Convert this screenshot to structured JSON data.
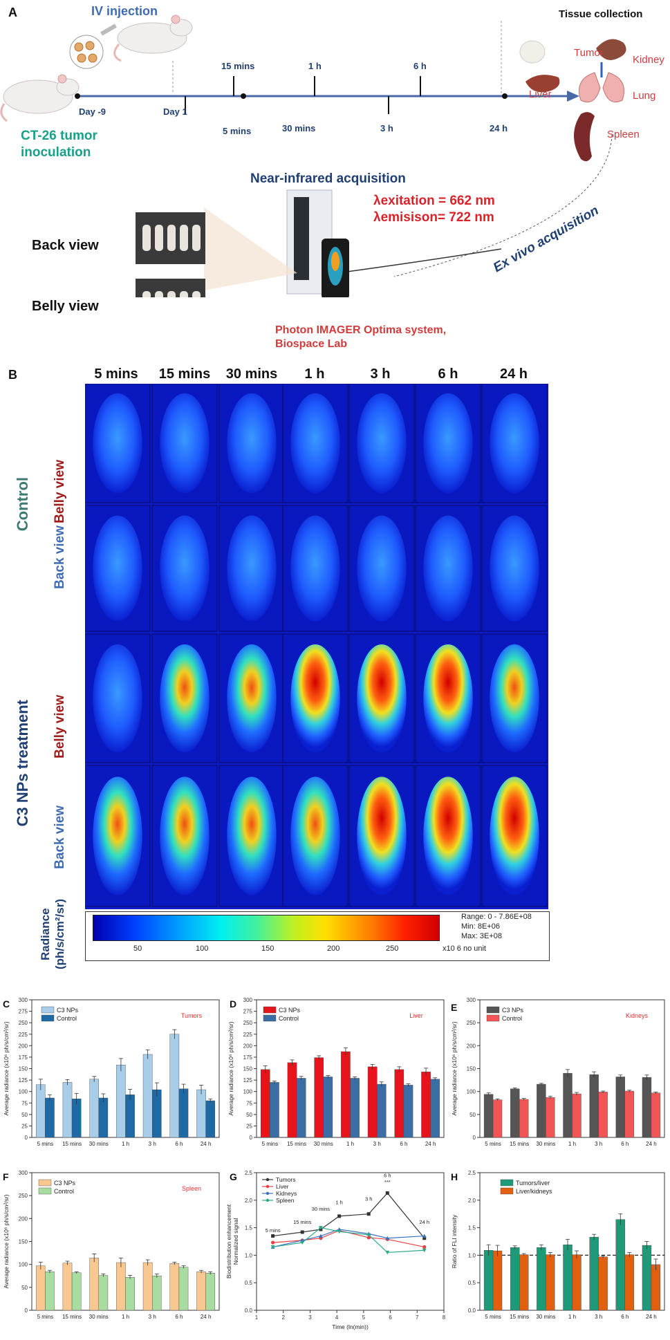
{
  "panel_a": {
    "letter": "A",
    "iv_injection": "IV injection",
    "tissue_collection": "Tissue collection",
    "tumor_inoculation": "CT-26 tumor\ninoculation",
    "timeline_top": [
      "15 mins",
      "1 h",
      "6 h"
    ],
    "timeline_bottom": [
      "Day -9",
      "Day 1",
      "5 mins",
      "30 mins",
      "3 h",
      "24 h"
    ],
    "organs": [
      "Tumor",
      "Kidney",
      "Liver",
      "Lung",
      "Spleen"
    ],
    "near_infrared": "Near-infrared acquisition",
    "lambda_excitation": "λexitation = 662 nm",
    "lambda_emission": "λemisison= 722 nm",
    "back_view": "Back view",
    "belly_view": "Belly view",
    "system_name": "Photon IMAGER Optima system,\nBiospace Lab",
    "ex_vivo": "Ex vivo acquisition"
  },
  "panel_b": {
    "letter": "B",
    "columns": [
      "5 mins",
      "15 mins",
      "30 mins",
      "1 h",
      "3 h",
      "6 h",
      "24 h"
    ],
    "groups": [
      "Control",
      "C3 NPs treatment"
    ],
    "row_labels": [
      "Belly view",
      "Back view",
      "Belly view",
      "Back view"
    ],
    "radiance_label": "Radiance\n(ph/s/cm²/sr)",
    "scale_ticks": [
      "50",
      "100",
      "150",
      "200",
      "250"
    ],
    "range_text": "Range: 0  -  7.86E+08",
    "min_text": "Min:       8E+06",
    "max_text": "Max:       3E+08",
    "unit_text": "x10 6  no unit"
  },
  "chart_data": [
    {
      "id": "C",
      "type": "bar",
      "title": "Tumors",
      "ylabel": "Average radiance (x10⁶ ph/s/cm²/sr)",
      "categories": [
        "5 mins",
        "15 mins",
        "30 mins",
        "1 h",
        "3 h",
        "6 h",
        "24 h"
      ],
      "ylim": [
        0,
        300
      ],
      "yticks": [
        0,
        25,
        50,
        75,
        100,
        125,
        150,
        175,
        200,
        225,
        250,
        275,
        300
      ],
      "series": [
        {
          "name": "C3 NPs",
          "color": "#a8cde8",
          "values": [
            115,
            120,
            127,
            158,
            181,
            225,
            104
          ],
          "errors": [
            12,
            6,
            6,
            14,
            10,
            10,
            10
          ]
        },
        {
          "name": "Control",
          "color": "#1f6aa5",
          "values": [
            86,
            84,
            86,
            93,
            104,
            106,
            80
          ],
          "errors": [
            7,
            12,
            9,
            12,
            15,
            10,
            4
          ]
        }
      ]
    },
    {
      "id": "D",
      "type": "bar",
      "title": "Liver",
      "ylabel": "Average radiance (x10⁶ ph/s/cm²/sr)",
      "categories": [
        "5 mins",
        "15 mins",
        "30 mins",
        "1 h",
        "3 h",
        "6 h",
        "24 h"
      ],
      "ylim": [
        0,
        300
      ],
      "yticks": [
        0,
        25,
        50,
        75,
        100,
        125,
        150,
        175,
        200,
        225,
        250,
        275,
        300
      ],
      "series": [
        {
          "name": "C3 NPs",
          "color": "#e8141c",
          "values": [
            148,
            163,
            174,
            187,
            154,
            148,
            143
          ],
          "errors": [
            8,
            6,
            4,
            8,
            5,
            6,
            8
          ]
        },
        {
          "name": "Control",
          "color": "#3a6ea5",
          "values": [
            120,
            129,
            132,
            129,
            116,
            114,
            127
          ],
          "errors": [
            3,
            4,
            3,
            3,
            5,
            3,
            3
          ]
        }
      ]
    },
    {
      "id": "E",
      "type": "bar",
      "title": "Kidneys",
      "ylabel": "Average radiance (x10⁶ ph/s/cm²/sr)",
      "categories": [
        "5 mins",
        "15 mins",
        "30 mins",
        "1 h",
        "3 h",
        "6 h",
        "24 h"
      ],
      "ylim": [
        0,
        300
      ],
      "yticks": [
        0,
        50,
        100,
        150,
        200,
        250,
        300
      ],
      "series": [
        {
          "name": "C3 NPs",
          "color": "#555555",
          "values": [
            94,
            106,
            116,
            140,
            137,
            132,
            131
          ],
          "errors": [
            3,
            2,
            2,
            8,
            6,
            4,
            5
          ]
        },
        {
          "name": "Control",
          "color": "#f25555",
          "values": [
            82,
            83,
            87,
            95,
            99,
            101,
            97
          ],
          "errors": [
            2,
            2,
            3,
            3,
            2,
            2,
            2
          ]
        }
      ]
    },
    {
      "id": "F",
      "type": "bar",
      "title": "Spleen",
      "ylabel": "Average radiance (x10⁶ ph/s/cm²/sr)",
      "categories": [
        "5 mins",
        "15 mins",
        "30 mins",
        "1 h",
        "3 h",
        "6 h",
        "24 h"
      ],
      "ylim": [
        0,
        300
      ],
      "yticks": [
        0,
        50,
        100,
        150,
        200,
        250,
        300
      ],
      "series": [
        {
          "name": "C3 NPs",
          "color": "#f8c890",
          "values": [
            97,
            103,
            114,
            104,
            104,
            102,
            84
          ],
          "errors": [
            8,
            4,
            9,
            10,
            6,
            3,
            3
          ]
        },
        {
          "name": "Control",
          "color": "#a8dca0",
          "values": [
            84,
            82,
            76,
            72,
            75,
            94,
            81
          ],
          "errors": [
            3,
            2,
            3,
            4,
            4,
            3,
            3
          ]
        }
      ]
    },
    {
      "id": "G",
      "type": "line",
      "title": "",
      "xlabel": "Time (ln(min))",
      "ylabel": "Biodistribution enhancement\nNormalized signal",
      "xlim": [
        1,
        8
      ],
      "ylim": [
        0.0,
        2.5
      ],
      "xticks": [
        1,
        2,
        3,
        4,
        5,
        6,
        7,
        8
      ],
      "yticks": [
        0.0,
        0.5,
        1.0,
        1.5,
        2.0,
        2.5
      ],
      "point_labels": [
        {
          "text": "5 mins",
          "x": 1.61,
          "y": 1.42
        },
        {
          "text": "15 mins",
          "x": 2.71,
          "y": 1.57
        },
        {
          "text": "30 mins",
          "x": 3.4,
          "y": 1.81
        },
        {
          "text": "1 h",
          "x": 4.09,
          "y": 1.93
        },
        {
          "text": "3 h",
          "x": 5.19,
          "y": 1.99
        },
        {
          "text": "6 h",
          "x": 5.89,
          "y": 2.42
        },
        {
          "text": "***",
          "x": 5.89,
          "y": 2.3
        },
        {
          "text": "24 h",
          "x": 7.27,
          "y": 1.57
        }
      ],
      "x": [
        1.61,
        2.71,
        3.4,
        4.09,
        5.19,
        5.89,
        7.27
      ],
      "series": [
        {
          "name": "Tumors",
          "color": "#333333",
          "marker": "square",
          "values": [
            1.35,
            1.42,
            1.47,
            1.71,
            1.75,
            2.13,
            1.31
          ]
        },
        {
          "name": "Liver",
          "color": "#e84040",
          "marker": "circle",
          "values": [
            1.23,
            1.27,
            1.31,
            1.45,
            1.32,
            1.29,
            1.15
          ]
        },
        {
          "name": "Kidneys",
          "color": "#3a70c0",
          "marker": "triangle",
          "values": [
            1.15,
            1.27,
            1.35,
            1.47,
            1.39,
            1.31,
            1.35
          ]
        },
        {
          "name": "Spleen",
          "color": "#2aa88a",
          "marker": "triangle-down",
          "values": [
            1.15,
            1.23,
            1.5,
            1.43,
            1.37,
            1.05,
            1.09
          ]
        }
      ]
    },
    {
      "id": "H",
      "type": "bar",
      "title": "",
      "ylabel": "Ratio of FLI intensity",
      "categories": [
        "5 mins",
        "15 mins",
        "30 mins",
        "1 h",
        "3 h",
        "6 h",
        "24 h"
      ],
      "ylim": [
        0,
        2.5
      ],
      "yticks": [
        0.0,
        0.5,
        1.0,
        1.5,
        2.0,
        2.5
      ],
      "reference_line": 1.0,
      "series": [
        {
          "name": "Tumors/liver",
          "color": "#1f9a78",
          "values": [
            1.09,
            1.14,
            1.14,
            1.19,
            1.33,
            1.65,
            1.18
          ],
          "errors": [
            0.1,
            0.03,
            0.05,
            0.1,
            0.05,
            0.1,
            0.07
          ]
        },
        {
          "name": "Liver/kidneys",
          "color": "#e06010",
          "values": [
            1.08,
            1.01,
            1.01,
            1.01,
            0.97,
            1.01,
            0.83
          ],
          "errors": [
            0.1,
            0.02,
            0.04,
            0.07,
            0.02,
            0.04,
            0.1
          ]
        }
      ]
    }
  ]
}
